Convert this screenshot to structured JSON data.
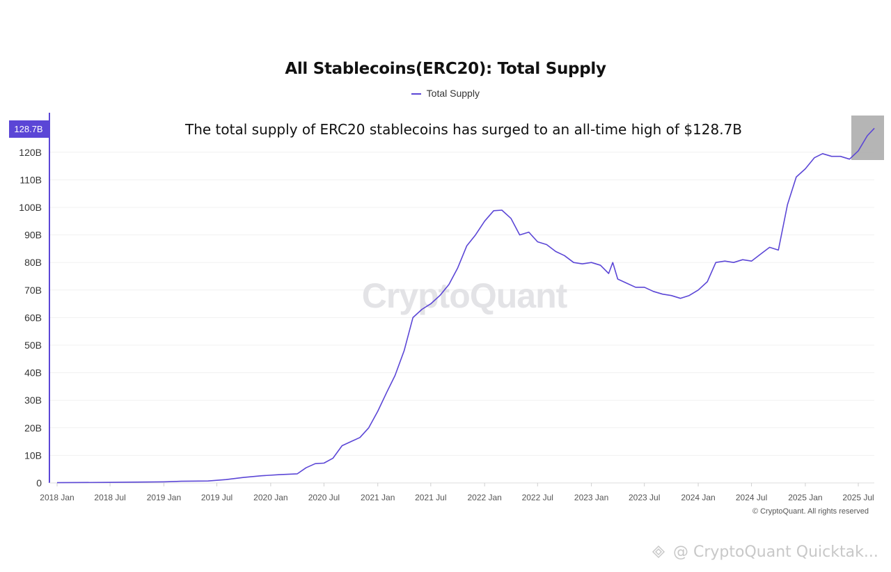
{
  "title": "All Stablecoins(ERC20): Total Supply",
  "legend_label": "Total Supply",
  "annotation": "The total supply of ERC20 stablecoins has surged to an all-time high of $128.7B",
  "watermark": "CryptoQuant",
  "copyright": "© CryptoQuant. All rights reserved",
  "footer_watermark": "@ CryptoQuant Quicktak...",
  "colors": {
    "line": "#5b46d6",
    "last_value_badge": "#5b46d6",
    "highlight_box": "#a8a8a8"
  },
  "chart_data": {
    "type": "line",
    "title": "All Stablecoins(ERC20): Total Supply",
    "xlabel": "",
    "ylabel": "",
    "grid": true,
    "legend_placement": "top-center",
    "ylim": [
      0,
      135
    ],
    "xlim": [
      "2018-01-01",
      "2025-09-15"
    ],
    "x_ticks": [
      "2018 Jan",
      "2018 Jul",
      "2019 Jan",
      "2019 Jul",
      "2020 Jan",
      "2020 Jul",
      "2021 Jan",
      "2021 Jul",
      "2022 Jan",
      "2022 Jul",
      "2023 Jan",
      "2023 Jul",
      "2024 Jan",
      "2024 Jul",
      "2025 Jan",
      "2025 Jul"
    ],
    "y_ticks": [
      "0",
      "10B",
      "20B",
      "30B",
      "40B",
      "50B",
      "60B",
      "70B",
      "80B",
      "90B",
      "100B",
      "110B",
      "120B"
    ],
    "last_value_label": "128.7B",
    "series": [
      {
        "name": "Total Supply",
        "unit": "B",
        "points": [
          [
            "2018-01-01",
            0.1
          ],
          [
            "2018-07-01",
            0.2
          ],
          [
            "2019-01-01",
            0.4
          ],
          [
            "2019-03-01",
            0.6
          ],
          [
            "2019-06-01",
            0.7
          ],
          [
            "2019-08-01",
            1.2
          ],
          [
            "2019-10-01",
            2.0
          ],
          [
            "2019-12-01",
            2.6
          ],
          [
            "2020-02-01",
            3.0
          ],
          [
            "2020-04-01",
            3.3
          ],
          [
            "2020-05-01",
            5.5
          ],
          [
            "2020-06-01",
            7.0
          ],
          [
            "2020-07-01",
            7.2
          ],
          [
            "2020-08-01",
            9.0
          ],
          [
            "2020-09-01",
            13.5
          ],
          [
            "2020-10-01",
            15.0
          ],
          [
            "2020-11-01",
            16.5
          ],
          [
            "2020-12-01",
            20.0
          ],
          [
            "2021-01-01",
            26.0
          ],
          [
            "2021-02-01",
            33.0
          ],
          [
            "2021-03-01",
            39.0
          ],
          [
            "2021-04-01",
            48.0
          ],
          [
            "2021-05-01",
            60.0
          ],
          [
            "2021-06-01",
            63.0
          ],
          [
            "2021-07-01",
            65.0
          ],
          [
            "2021-08-01",
            68.0
          ],
          [
            "2021-09-01",
            72.0
          ],
          [
            "2021-10-01",
            78.0
          ],
          [
            "2021-11-01",
            86.0
          ],
          [
            "2021-12-01",
            90.0
          ],
          [
            "2022-01-01",
            95.0
          ],
          [
            "2022-02-01",
            98.8
          ],
          [
            "2022-03-01",
            99.0
          ],
          [
            "2022-04-01",
            96.0
          ],
          [
            "2022-05-01",
            90.0
          ],
          [
            "2022-06-01",
            91.0
          ],
          [
            "2022-07-01",
            87.5
          ],
          [
            "2022-08-01",
            86.5
          ],
          [
            "2022-09-01",
            84.0
          ],
          [
            "2022-10-01",
            82.5
          ],
          [
            "2022-11-01",
            80.0
          ],
          [
            "2022-12-01",
            79.5
          ],
          [
            "2023-01-01",
            80.0
          ],
          [
            "2023-02-01",
            79.0
          ],
          [
            "2023-03-01",
            76.0
          ],
          [
            "2023-03-15",
            80.0
          ],
          [
            "2023-04-01",
            74.0
          ],
          [
            "2023-05-01",
            72.5
          ],
          [
            "2023-06-01",
            71.0
          ],
          [
            "2023-07-01",
            71.0
          ],
          [
            "2023-08-01",
            69.5
          ],
          [
            "2023-09-01",
            68.5
          ],
          [
            "2023-10-01",
            68.0
          ],
          [
            "2023-11-01",
            67.0
          ],
          [
            "2023-12-01",
            68.0
          ],
          [
            "2024-01-01",
            70.0
          ],
          [
            "2024-02-01",
            73.0
          ],
          [
            "2024-03-01",
            80.0
          ],
          [
            "2024-04-01",
            80.5
          ],
          [
            "2024-05-01",
            80.0
          ],
          [
            "2024-06-01",
            81.0
          ],
          [
            "2024-07-01",
            80.5
          ],
          [
            "2024-08-01",
            83.0
          ],
          [
            "2024-09-01",
            85.5
          ],
          [
            "2024-10-01",
            84.5
          ],
          [
            "2024-11-01",
            101.0
          ],
          [
            "2024-12-01",
            111.0
          ],
          [
            "2025-01-01",
            114.0
          ],
          [
            "2025-02-01",
            118.0
          ],
          [
            "2025-03-01",
            119.5
          ],
          [
            "2025-04-01",
            118.5
          ],
          [
            "2025-05-01",
            118.5
          ],
          [
            "2025-06-01",
            117.5
          ],
          [
            "2025-07-01",
            120.5
          ],
          [
            "2025-08-01",
            126.0
          ],
          [
            "2025-08-25",
            128.7
          ]
        ]
      }
    ]
  }
}
